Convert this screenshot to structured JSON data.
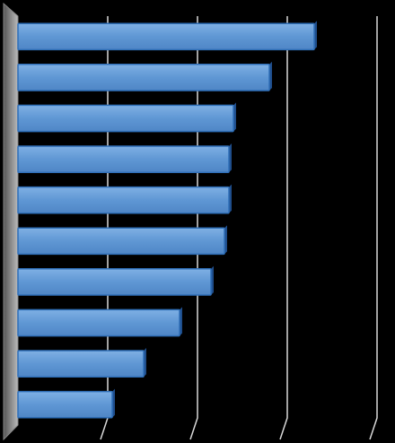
{
  "chart_data": {
    "type": "bar",
    "orientation": "horizontal",
    "categories": [
      null,
      null,
      null,
      null,
      null,
      null,
      null,
      null,
      null,
      null
    ],
    "values": [
      3.3,
      2.8,
      2.4,
      2.35,
      2.35,
      2.3,
      2.15,
      1.8,
      1.4,
      1.05
    ],
    "color": "#5b9bd5",
    "xlim": [
      0,
      4
    ],
    "xticks": [
      1,
      2,
      3,
      4
    ],
    "grid": true
  }
}
